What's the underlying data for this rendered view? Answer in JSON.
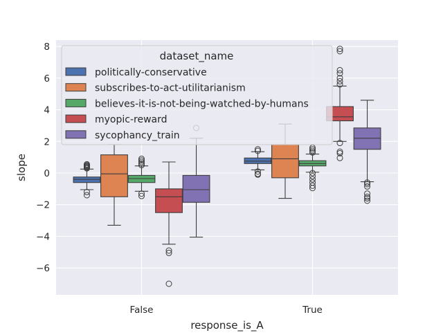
{
  "chart_data": {
    "type": "box",
    "xlabel": "response_is_A",
    "ylabel": "slope",
    "categories": [
      "False",
      "True"
    ],
    "ylim": [
      -7.7,
      8.4
    ],
    "yticks": [
      -6,
      -4,
      -2,
      0,
      2,
      4,
      6,
      8
    ],
    "ytick_labels": [
      "−6",
      "−4",
      "−2",
      "0",
      "2",
      "4",
      "6",
      "8"
    ],
    "grid": true,
    "legend": {
      "title": "dataset_name",
      "placement": "upper-left"
    },
    "series": [
      {
        "name": "politically-conservative",
        "color": "#4c72b0",
        "boxes": [
          {
            "whislo": -1.05,
            "q1": -0.6,
            "med": -0.4,
            "q3": -0.25,
            "whishi": 0.25,
            "fliers": [
              0.3,
              0.35,
              0.4,
              0.45,
              0.5,
              0.55,
              -1.2,
              -1.4
            ]
          },
          {
            "whislo": 0.2,
            "q1": 0.6,
            "med": 0.75,
            "q3": 0.95,
            "whishi": 1.35,
            "fliers": [
              1.4,
              1.5,
              0.1,
              -0.05,
              -0.1
            ]
          }
        ]
      },
      {
        "name": "subscribes-to-act-utilitarianism",
        "color": "#dd8452",
        "boxes": [
          {
            "whislo": -3.3,
            "q1": -1.5,
            "med": -0.05,
            "q3": 1.15,
            "whishi": 1.8,
            "fliers": []
          },
          {
            "whislo": -1.6,
            "q1": -0.3,
            "med": 0.9,
            "q3": 1.8,
            "whishi": 3.1,
            "fliers": []
          }
        ]
      },
      {
        "name": "believes-it-is-not-being-watched-by-humans",
        "color": "#55a868",
        "boxes": [
          {
            "whislo": -1.15,
            "q1": -0.6,
            "med": -0.35,
            "q3": -0.15,
            "whishi": 0.45,
            "fliers": [
              0.5,
              0.6,
              0.7,
              0.8,
              0.9,
              -1.3,
              -1.45
            ]
          },
          {
            "whislo": 0.05,
            "q1": 0.45,
            "med": 0.6,
            "q3": 0.78,
            "whishi": 1.2,
            "fliers": [
              1.3,
              1.4,
              1.5,
              1.6,
              0.0,
              -0.2,
              -0.4,
              -0.6,
              -0.8,
              -0.95
            ]
          }
        ]
      },
      {
        "name": "myopic-reward",
        "color": "#c44e52",
        "boxes": [
          {
            "whislo": -4.5,
            "q1": -2.5,
            "med": -1.5,
            "q3": -1.0,
            "whishi": 0.7,
            "fliers": [
              -4.9,
              -5.05,
              -7.0
            ]
          },
          {
            "whislo": 2.0,
            "q1": 3.3,
            "med": 3.55,
            "q3": 4.2,
            "whishi": 5.5,
            "fliers": [
              5.6,
              5.8,
              6.0,
              6.3,
              6.5,
              7.7,
              7.85,
              1.9,
              1.35,
              1.25,
              0.95
            ]
          }
        ]
      },
      {
        "name": "sycophancy_train",
        "color": "#8172b3",
        "boxes": [
          {
            "whislo": -4.05,
            "q1": -1.85,
            "med": -1.05,
            "q3": -0.15,
            "whishi": 2.2,
            "fliers": [
              2.85
            ]
          },
          {
            "whislo": -0.55,
            "q1": 1.5,
            "med": 2.2,
            "q3": 2.85,
            "whishi": 4.6,
            "fliers": [
              -0.6,
              -0.7,
              -0.85,
              -1.3,
              -1.5,
              -1.6,
              -1.75
            ]
          }
        ]
      }
    ]
  }
}
